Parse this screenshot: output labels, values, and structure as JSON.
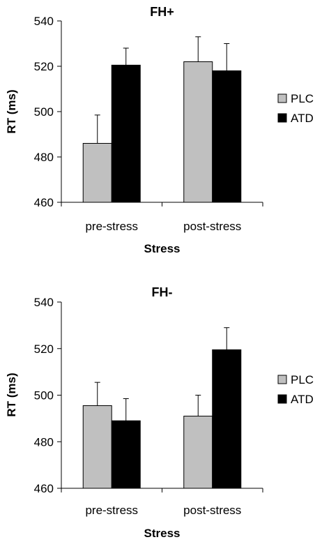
{
  "chart_data": [
    {
      "type": "bar",
      "title": "FH+",
      "xlabel": "Stress",
      "ylabel": "RT (ms)",
      "ylim": [
        460,
        540
      ],
      "yticks": [
        "460",
        "480",
        "500",
        "520",
        "540"
      ],
      "categories": [
        "pre-stress",
        "post-stress"
      ],
      "series": [
        {
          "name": "PLC",
          "color": "#c0c0c0",
          "values": [
            486,
            522
          ],
          "errors": [
            12.5,
            11
          ]
        },
        {
          "name": "ATD",
          "color": "#000000",
          "values": [
            520.5,
            518
          ],
          "errors": [
            7.5,
            12
          ]
        }
      ],
      "legend": "right",
      "grid": false
    },
    {
      "type": "bar",
      "title": "FH-",
      "xlabel": "Stress",
      "ylabel": "RT (ms)",
      "ylim": [
        460,
        540
      ],
      "yticks": [
        "460",
        "480",
        "500",
        "520",
        "540"
      ],
      "categories": [
        "pre-stress",
        "post-stress"
      ],
      "series": [
        {
          "name": "PLC",
          "color": "#c0c0c0",
          "values": [
            495.5,
            491
          ],
          "errors": [
            10,
            9
          ]
        },
        {
          "name": "ATD",
          "color": "#000000",
          "values": [
            489,
            519.5
          ],
          "errors": [
            9.5,
            9.5
          ]
        }
      ],
      "legend": "right",
      "grid": false
    }
  ]
}
